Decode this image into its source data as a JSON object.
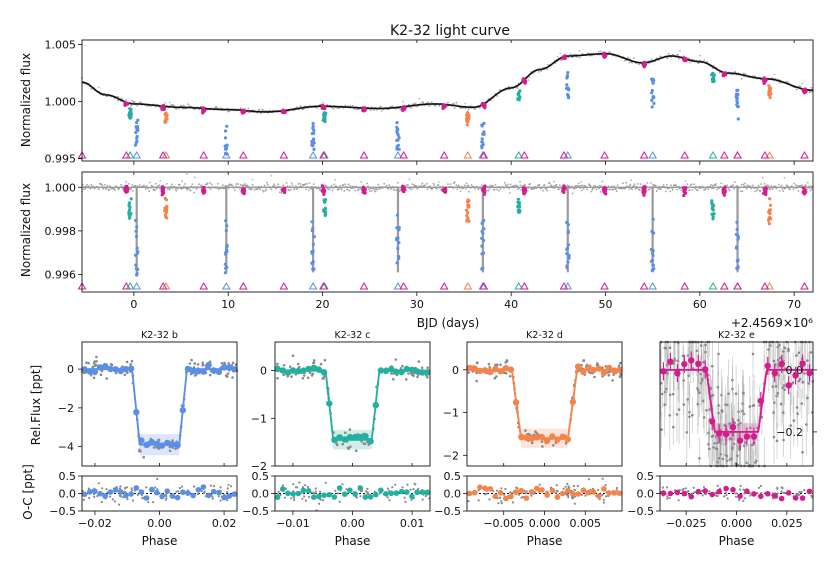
{
  "title": "K2-32 light curve",
  "colors": {
    "b": "#5b8ee6",
    "c": "#22b0a0",
    "d": "#f5834a",
    "e": "#d41c8e",
    "model": "#111111",
    "data": "#888888"
  },
  "top": {
    "ylabel": "Normalized flux",
    "yticks": [
      "1.005",
      "1.000",
      "0.995"
    ],
    "ytick_values": [
      1.005,
      1.0,
      0.995
    ],
    "ylim": [
      0.9948,
      1.0054
    ]
  },
  "mid": {
    "ylabel": "Normalized flux",
    "yticks": [
      "1.000",
      "0.998",
      "0.996"
    ],
    "ytick_values": [
      1.0,
      0.998,
      0.996
    ],
    "ylim": [
      0.9952,
      1.0007
    ]
  },
  "xaxis": {
    "xlabel": "BJD (days)",
    "offset": "+2.4569×10⁶",
    "xticks": [
      "0",
      "10",
      "20",
      "30",
      "40",
      "50",
      "60",
      "70"
    ],
    "xtick_values": [
      0,
      10,
      20,
      30,
      40,
      50,
      60,
      70
    ],
    "xlim": [
      -5.5,
      72
    ]
  },
  "chart_data": {
    "type": "scatter",
    "title": "K2-32 light curve",
    "xlabel": "BJD (days)",
    "ylabel": "Normalized flux",
    "transit_markers": {
      "b": [
        0.3,
        9.8,
        19.0,
        28.0,
        37.0,
        46.0,
        55.0,
        64.0
      ],
      "c": [
        -0.4,
        20.2,
        40.8,
        61.4
      ],
      "d": [
        3.4,
        35.4,
        67.4
      ],
      "e": [
        -5.5,
        -0.8,
        3.1,
        7.4,
        11.6,
        15.9,
        20.1,
        24.4,
        28.6,
        32.9,
        37.1,
        41.4,
        45.6,
        49.9,
        54.1,
        58.4,
        62.6,
        64.0,
        66.9,
        71.1
      ]
    },
    "transit_depths": {
      "b": 0.0039,
      "c": 0.0014,
      "d": 0.0016,
      "e": 0.0002
    },
    "trend": [
      {
        "x": -5.5,
        "y": 1.0017
      },
      {
        "x": -3,
        "y": 1.0006
      },
      {
        "x": 0,
        "y": 0.9998
      },
      {
        "x": 5,
        "y": 0.9995
      },
      {
        "x": 10,
        "y": 0.9993
      },
      {
        "x": 14,
        "y": 0.9991
      },
      {
        "x": 20,
        "y": 0.9996
      },
      {
        "x": 26,
        "y": 0.9994
      },
      {
        "x": 32,
        "y": 0.9998
      },
      {
        "x": 36,
        "y": 0.9995
      },
      {
        "x": 40,
        "y": 1.0012
      },
      {
        "x": 43,
        "y": 1.0028
      },
      {
        "x": 46,
        "y": 1.004
      },
      {
        "x": 50,
        "y": 1.0042
      },
      {
        "x": 54,
        "y": 1.0034
      },
      {
        "x": 57,
        "y": 1.004
      },
      {
        "x": 60,
        "y": 1.0035
      },
      {
        "x": 63,
        "y": 1.0025
      },
      {
        "x": 67,
        "y": 1.002
      },
      {
        "x": 72,
        "y": 1.001
      }
    ],
    "panels": [
      {
        "name": "K2-32 b",
        "color_key": "b",
        "xlim": [
          -0.024,
          0.024
        ],
        "xticks": [
          "−0.02",
          "0.00",
          "0.02"
        ],
        "xtick_values": [
          -0.02,
          0,
          0.02
        ],
        "ylim": [
          -5.0,
          1.4
        ],
        "yticks": [
          "0",
          "−2",
          "−4"
        ],
        "ytick_values": [
          0,
          -2,
          -4
        ],
        "depth": 3.9,
        "half_width": 0.0085
      },
      {
        "name": "K2-32 c",
        "color_key": "c",
        "xlim": [
          -0.013,
          0.013
        ],
        "xticks": [
          "−0.01",
          "0.00",
          "0.01"
        ],
        "xtick_values": [
          -0.01,
          0,
          0.01
        ],
        "ylim": [
          -2.0,
          0.6
        ],
        "yticks": [
          "0",
          "−1",
          "−2"
        ],
        "ytick_values": [
          0,
          -1,
          -2
        ],
        "depth": 1.45,
        "half_width": 0.0045
      },
      {
        "name": "K2-32 d",
        "color_key": "d",
        "xlim": [
          -0.0095,
          0.0095
        ],
        "xticks": [
          "−0.005",
          "0.000",
          "0.005"
        ],
        "xtick_values": [
          -0.005,
          0,
          0.005
        ],
        "ylim": [
          -2.25,
          0.65
        ],
        "yticks": [
          "0",
          "−1",
          "−2"
        ],
        "ytick_values": [
          0,
          -1,
          -2
        ],
        "depth": 1.6,
        "half_width": 0.004
      },
      {
        "name": "K2-32 e",
        "color_key": "e",
        "xlim": [
          -0.038,
          0.038
        ],
        "xticks": [
          "−0.025",
          "0.000",
          "0.025"
        ],
        "xtick_values": [
          -0.025,
          0,
          0.025
        ],
        "ylim": [
          -0.31,
          0.09
        ],
        "yticks": [
          "0.0",
          "−0.2"
        ],
        "ytick_values": [
          0,
          -0.2
        ],
        "depth": 0.2,
        "half_width": 0.015
      }
    ],
    "residual": {
      "ylabel": "O-C [ppt]",
      "ylim": [
        -0.5,
        0.5
      ],
      "yticks": [
        "0.5",
        "0.0",
        "−0.5"
      ],
      "ytick_values": [
        0.5,
        0,
        -0.5
      ]
    },
    "panel_ylabel": "Rel.Flux [ppt]",
    "panel_xlabel": "Phase"
  }
}
